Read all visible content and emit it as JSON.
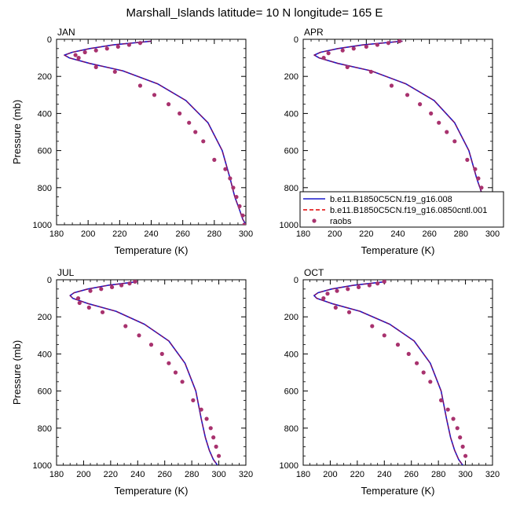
{
  "figure": {
    "title": "Marshall_Islands  latitude= 10 N longitude= 165 E"
  },
  "colors": {
    "case1": "#1a1acc",
    "case2": "#e00000",
    "obs": "#a8326e",
    "axis": "#000000",
    "background": "#ffffff"
  },
  "legend": {
    "entries": [
      {
        "label": "b.e11.B1850C5CN.f19_g16.008",
        "style": "solid"
      },
      {
        "label": "b.e11.B1850C5CN.f19_g16.0850cntl.001",
        "style": "dashed"
      },
      {
        "label": "raobs",
        "style": "dot"
      }
    ],
    "placement": "right of top-right panel, bottom"
  },
  "chart_data": [
    {
      "type": "line",
      "panel": "JAN",
      "title": "JAN",
      "xlabel": "Temperature (K)",
      "ylabel": "Pressure (mb)",
      "xlim": [
        180,
        300
      ],
      "ylim": [
        1000,
        0
      ],
      "xticks": [
        "180",
        "200",
        "220",
        "240",
        "260",
        "280",
        "300"
      ],
      "yticks": [
        "0",
        "200",
        "400",
        "600",
        "800",
        "1000"
      ],
      "series": [
        {
          "name": "b.e11.B1850C5CN.f19_g16.008",
          "x": [
            240,
            216,
            201,
            190,
            185,
            188,
            201,
            222,
            244,
            262,
            276,
            285,
            290,
            293,
            296,
            298,
            300
          ],
          "y": [
            10,
            30,
            50,
            70,
            85,
            100,
            130,
            170,
            240,
            330,
            450,
            600,
            750,
            850,
            920,
            970,
            1000
          ]
        },
        {
          "name": "b.e11.B1850C5CN.f19_g16.0850cntl.001",
          "x": [
            240,
            216,
            201,
            190,
            185,
            188,
            201,
            222,
            244,
            262,
            276,
            285,
            290,
            293,
            296,
            298,
            300
          ],
          "y": [
            10,
            30,
            50,
            70,
            85,
            100,
            130,
            170,
            240,
            330,
            450,
            600,
            750,
            850,
            920,
            970,
            1000
          ]
        },
        {
          "name": "raobs",
          "x": [
            233,
            226,
            219,
            212,
            205,
            198,
            192,
            194,
            205,
            217,
            233,
            242,
            251,
            258,
            264,
            268,
            273,
            280,
            287,
            290,
            292,
            294,
            296,
            298,
            299
          ],
          "y": [
            20,
            30,
            40,
            50,
            60,
            70,
            85,
            100,
            150,
            175,
            250,
            300,
            350,
            400,
            450,
            500,
            550,
            650,
            700,
            750,
            800,
            850,
            900,
            950,
            1000
          ]
        }
      ]
    },
    {
      "type": "line",
      "panel": "APR",
      "title": "APR",
      "xlabel": "Temperature (K)",
      "ylabel": "",
      "xlim": [
        180,
        300
      ],
      "ylim": [
        1000,
        0
      ],
      "xticks": [
        "180",
        "200",
        "220",
        "240",
        "260",
        "280",
        "300"
      ],
      "yticks": [
        "0",
        "200",
        "400",
        "600",
        "800",
        "1000"
      ],
      "series": [
        {
          "name": "b.e11.B1850C5CN.f19_g16.008",
          "x": [
            243,
            218,
            202,
            191,
            187,
            190,
            202,
            223,
            245,
            263,
            276,
            285,
            290,
            294,
            296,
            298,
            300
          ],
          "y": [
            10,
            30,
            50,
            70,
            85,
            100,
            130,
            170,
            240,
            330,
            450,
            600,
            750,
            850,
            920,
            970,
            1000
          ]
        },
        {
          "name": "b.e11.B1850C5CN.f19_g16.0850cntl.001",
          "x": [
            243,
            218,
            202,
            191,
            187,
            190,
            202,
            223,
            245,
            263,
            276,
            285,
            290,
            294,
            296,
            298,
            300
          ],
          "y": [
            10,
            30,
            50,
            70,
            85,
            100,
            130,
            170,
            240,
            330,
            450,
            600,
            750,
            850,
            920,
            970,
            1000
          ]
        },
        {
          "name": "raobs",
          "x": [
            241,
            234,
            227,
            220,
            212,
            205,
            196,
            193,
            208,
            223,
            236,
            246,
            254,
            261,
            266,
            271,
            276,
            284,
            289,
            291,
            293,
            294,
            296,
            298,
            299
          ],
          "y": [
            10,
            20,
            30,
            40,
            50,
            60,
            75,
            100,
            150,
            175,
            250,
            300,
            350,
            400,
            450,
            500,
            550,
            650,
            700,
            750,
            800,
            850,
            900,
            950,
            1000
          ]
        }
      ]
    },
    {
      "type": "line",
      "panel": "JUL",
      "title": "JUL",
      "xlabel": "Temperature (K)",
      "ylabel": "Pressure (mb)",
      "xlim": [
        180,
        320
      ],
      "ylim": [
        1000,
        0
      ],
      "xticks": [
        "180",
        "200",
        "220",
        "240",
        "260",
        "280",
        "300",
        "320"
      ],
      "yticks": [
        "0",
        "200",
        "400",
        "600",
        "800",
        "1000"
      ],
      "series": [
        {
          "name": "b.e11.B1850C5CN.f19_g16.008",
          "x": [
            240,
            218,
            203,
            193,
            190,
            192,
            204,
            224,
            245,
            263,
            275,
            283,
            287,
            290,
            293,
            296,
            299
          ],
          "y": [
            10,
            30,
            50,
            70,
            85,
            100,
            130,
            170,
            240,
            330,
            450,
            600,
            750,
            850,
            920,
            970,
            1000
          ]
        },
        {
          "name": "b.e11.B1850C5CN.f19_g16.0850cntl.001",
          "x": [
            240,
            218,
            203,
            193,
            190,
            192,
            204,
            224,
            245,
            263,
            275,
            283,
            287,
            290,
            293,
            296,
            299
          ],
          "y": [
            10,
            30,
            50,
            70,
            85,
            100,
            130,
            170,
            240,
            330,
            450,
            600,
            750,
            850,
            920,
            970,
            1000
          ]
        },
        {
          "name": "raobs",
          "x": [
            238,
            234,
            228,
            221,
            213,
            205,
            196,
            197,
            204,
            214,
            231,
            241,
            250,
            258,
            263,
            268,
            273,
            281,
            287,
            291,
            294,
            296,
            298,
            300
          ],
          "y": [
            10,
            20,
            30,
            40,
            50,
            60,
            100,
            125,
            150,
            175,
            250,
            300,
            350,
            400,
            450,
            500,
            550,
            650,
            700,
            750,
            800,
            850,
            900,
            950
          ]
        }
      ]
    },
    {
      "type": "line",
      "panel": "OCT",
      "title": "OCT",
      "xlabel": "Temperature (K)",
      "ylabel": "",
      "xlim": [
        180,
        320
      ],
      "ylim": [
        1000,
        0
      ],
      "xticks": [
        "180",
        "200",
        "220",
        "240",
        "260",
        "280",
        "300",
        "320"
      ],
      "yticks": [
        "0",
        "200",
        "400",
        "600",
        "800",
        "1000"
      ],
      "series": [
        {
          "name": "b.e11.B1850C5CN.f19_g16.008",
          "x": [
            241,
            217,
            201,
            191,
            188,
            190,
            202,
            222,
            244,
            262,
            274,
            282,
            286,
            289,
            292,
            295,
            298
          ],
          "y": [
            10,
            30,
            50,
            70,
            85,
            100,
            130,
            170,
            240,
            330,
            450,
            600,
            750,
            850,
            920,
            970,
            1000
          ]
        },
        {
          "name": "b.e11.B1850C5CN.f19_g16.0850cntl.001",
          "x": [
            241,
            217,
            201,
            191,
            188,
            190,
            202,
            222,
            244,
            262,
            274,
            282,
            286,
            289,
            292,
            295,
            298
          ],
          "y": [
            10,
            30,
            50,
            70,
            85,
            100,
            130,
            170,
            240,
            330,
            450,
            600,
            750,
            850,
            920,
            970,
            1000
          ]
        },
        {
          "name": "raobs",
          "x": [
            240,
            235,
            229,
            221,
            213,
            205,
            198,
            195,
            204,
            214,
            231,
            240,
            250,
            258,
            264,
            269,
            274,
            282,
            287,
            291,
            294,
            296,
            298,
            300
          ],
          "y": [
            10,
            20,
            30,
            40,
            50,
            60,
            75,
            100,
            150,
            175,
            250,
            300,
            350,
            400,
            450,
            500,
            550,
            650,
            700,
            750,
            800,
            850,
            900,
            950
          ]
        }
      ]
    }
  ]
}
